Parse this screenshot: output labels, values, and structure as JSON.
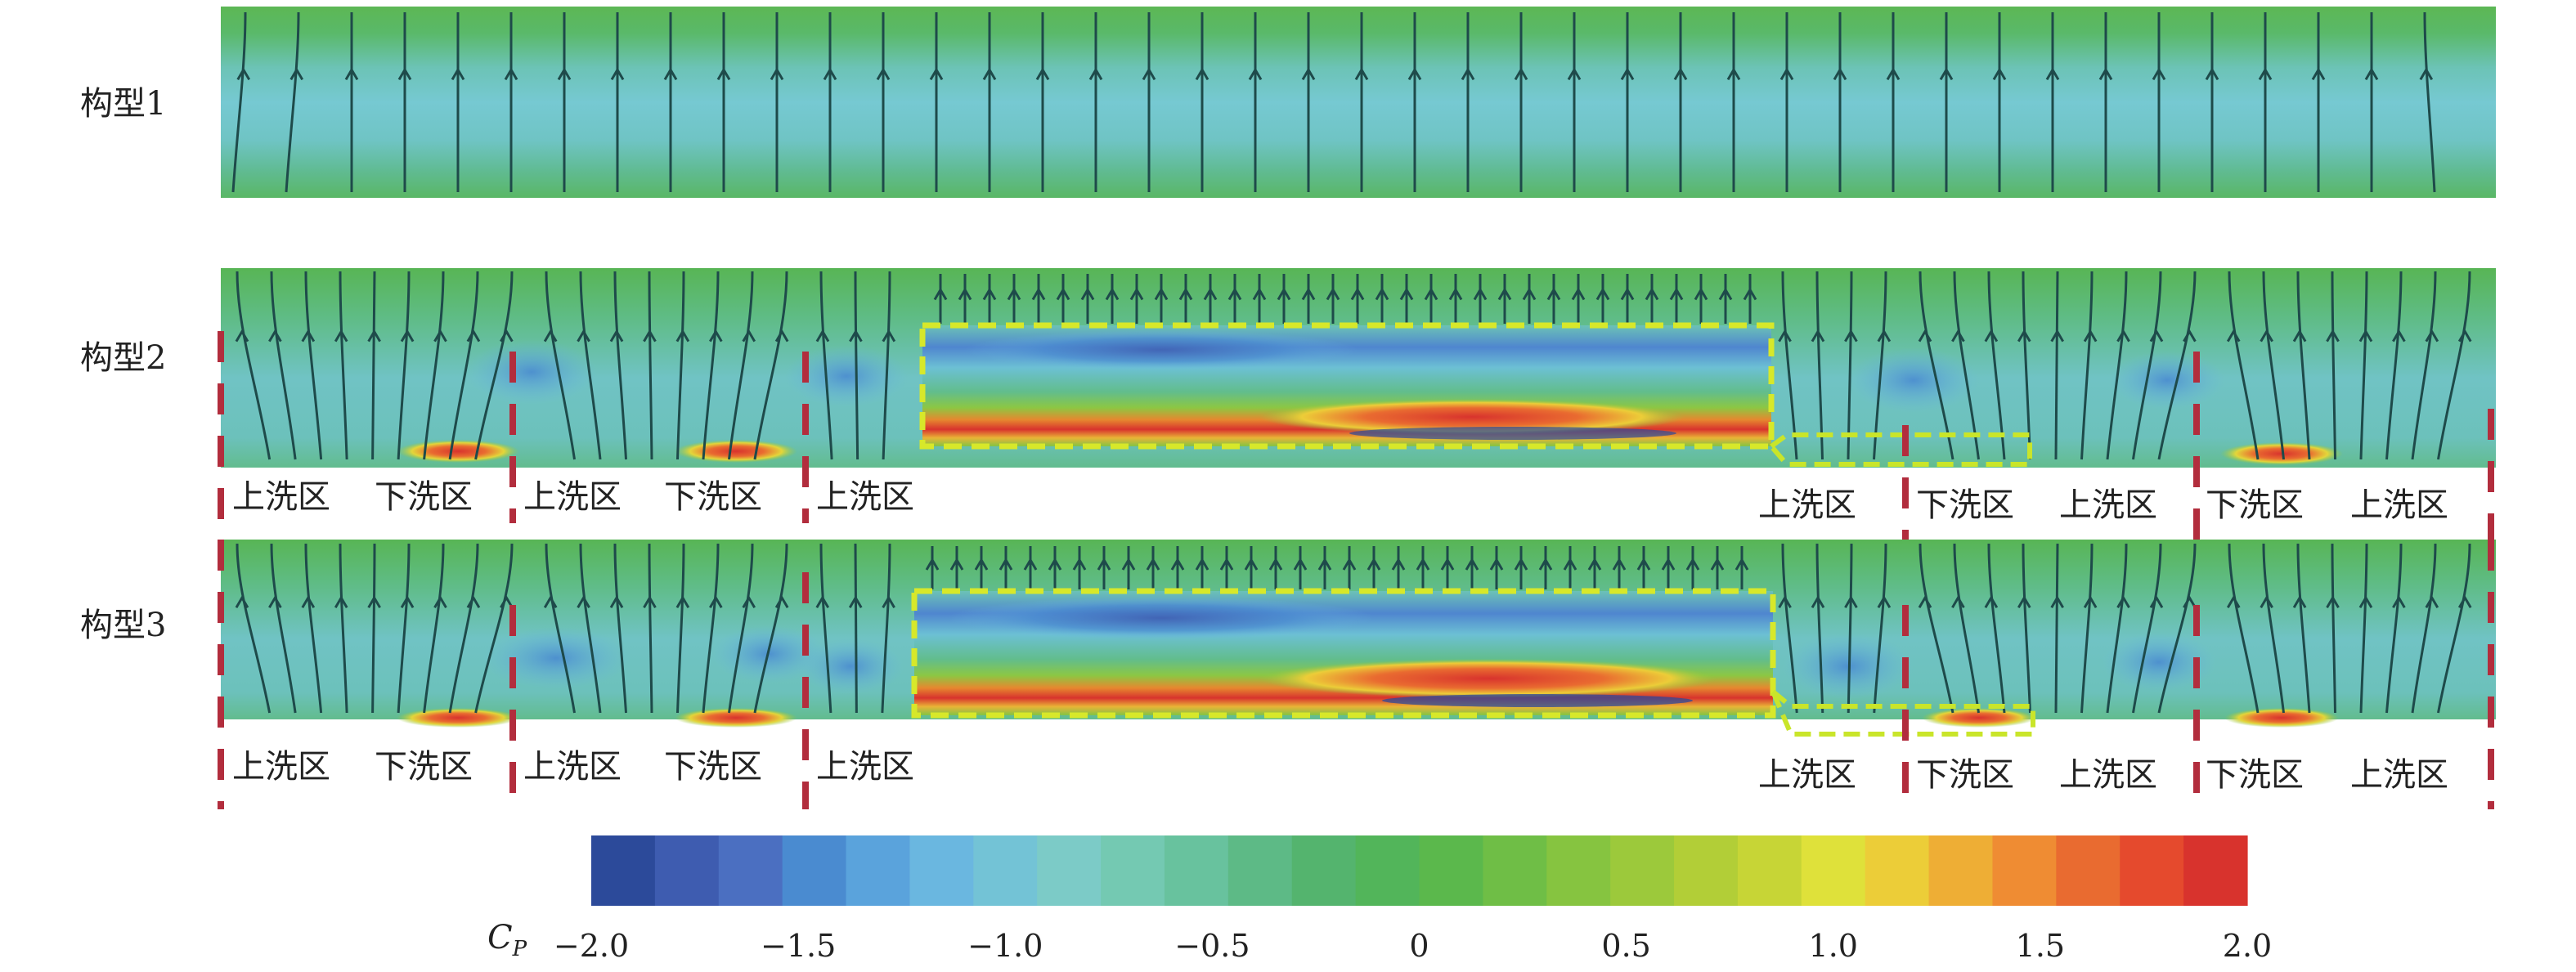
{
  "rows": [
    {
      "label": "构型1"
    },
    {
      "label": "构型2"
    },
    {
      "label": "构型3"
    }
  ],
  "zones_left": [
    "上洗区",
    "下洗区",
    "上洗区",
    "下洗区",
    "上洗区"
  ],
  "zones_right": [
    "上洗区",
    "下洗区",
    "上洗区",
    "下洗区",
    "上洗区"
  ],
  "colorbar": {
    "variable": "C",
    "subscript": "P",
    "ticks": [
      "−2.0",
      "−1.5",
      "−1.0",
      "−0.5",
      "0",
      "0.5",
      "1.0",
      "1.5",
      "2.0"
    ],
    "colors": [
      "#2c4a9a",
      "#3e5cb0",
      "#4b6fc1",
      "#4a8bd0",
      "#5aa3dc",
      "#6ab7e0",
      "#73c3d6",
      "#7ccbc7",
      "#74c9b2",
      "#68c29e",
      "#5dba86",
      "#54b46e",
      "#52b55a",
      "#5bb84c",
      "#6fbe46",
      "#86c440",
      "#9cc93b",
      "#b2ce37",
      "#c7d536",
      "#dfe13a",
      "#eccd38",
      "#eeae35",
      "#ef8c33",
      "#e96b30",
      "#e54a2d",
      "#d8332d"
    ],
    "min": -2.0,
    "max": 2.0
  }
}
